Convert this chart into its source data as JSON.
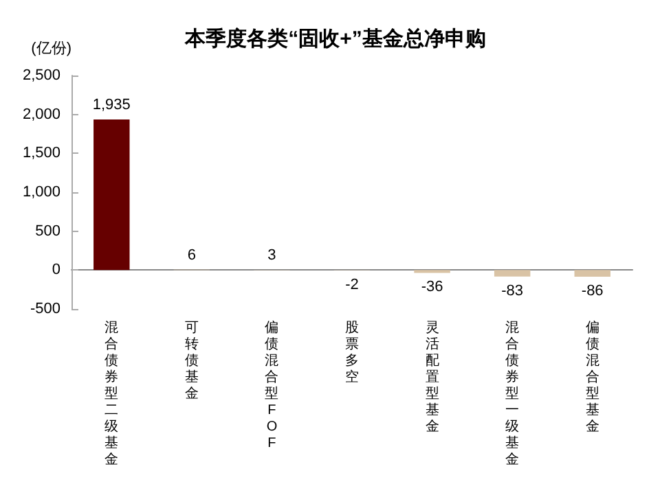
{
  "chart_data": {
    "type": "bar",
    "title": "本季度各类“固收+”基金总净申购",
    "ylabel": "(亿份)",
    "categories": [
      "混合债券型二级基金",
      "可转债基金",
      "偏债混合型FOF",
      "股票多空",
      "灵活配置型基金",
      "混合债券型一级基金",
      "偏债混合型基金"
    ],
    "values": [
      1935,
      6,
      3,
      -2,
      -36,
      -83,
      -86
    ],
    "value_labels": [
      "1,935",
      "6",
      "3",
      "-2",
      "-36",
      "-83",
      "-86"
    ],
    "colors": [
      "#660000",
      "#d9c3a5",
      "#d9c3a5",
      "#d9c3a5",
      "#d9c3a5",
      "#d9c3a5",
      "#d9c3a5"
    ],
    "ylim": [
      -500,
      2500
    ],
    "yticks": [
      {
        "value": -500,
        "label": "-500"
      },
      {
        "value": 0,
        "label": "0"
      },
      {
        "value": 500,
        "label": "500"
      },
      {
        "value": 1000,
        "label": "1,000"
      },
      {
        "value": 1500,
        "label": "1,500"
      },
      {
        "value": 2000,
        "label": "2,000"
      },
      {
        "value": 2500,
        "label": "2,500"
      }
    ]
  }
}
